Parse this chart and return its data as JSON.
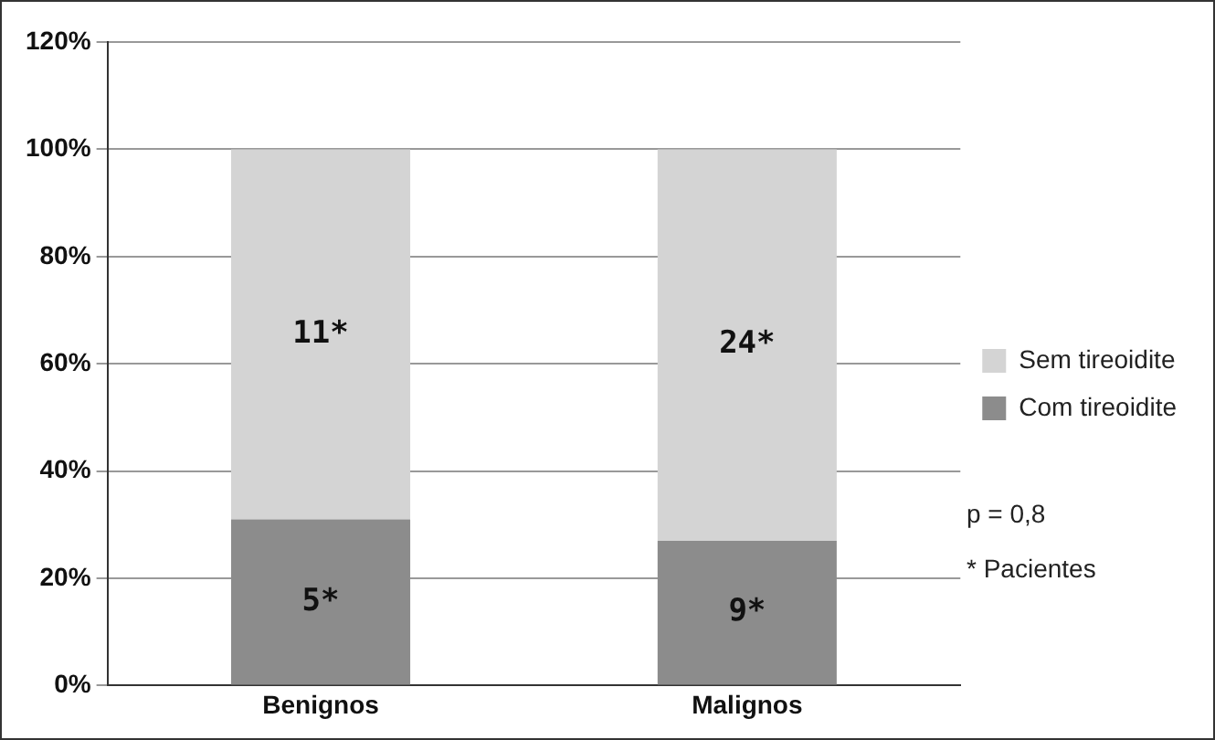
{
  "chart_data": {
    "type": "bar",
    "stacked": true,
    "categories": [
      "Benignos",
      "Malignos"
    ],
    "series": [
      {
        "name": "Com tireoidite",
        "color": "#8c8c8c",
        "values": [
          31,
          27
        ]
      },
      {
        "name": "Sem tireoidite",
        "color": "#d4d4d4",
        "values": [
          69,
          73
        ]
      }
    ],
    "ylim": [
      0,
      120
    ],
    "yticks": [
      {
        "value": 0,
        "label": "0%"
      },
      {
        "value": 20,
        "label": "20%"
      },
      {
        "value": 40,
        "label": "40%"
      },
      {
        "value": 60,
        "label": "60%"
      },
      {
        "value": 80,
        "label": "80%"
      },
      {
        "value": 100,
        "label": "100%"
      },
      {
        "value": 120,
        "label": "120%"
      }
    ],
    "grid": "y",
    "legend": "right",
    "annotations": [
      "5*",
      "9*",
      "11*",
      "24*",
      "p = 0,8",
      "* Pacientes"
    ]
  }
}
